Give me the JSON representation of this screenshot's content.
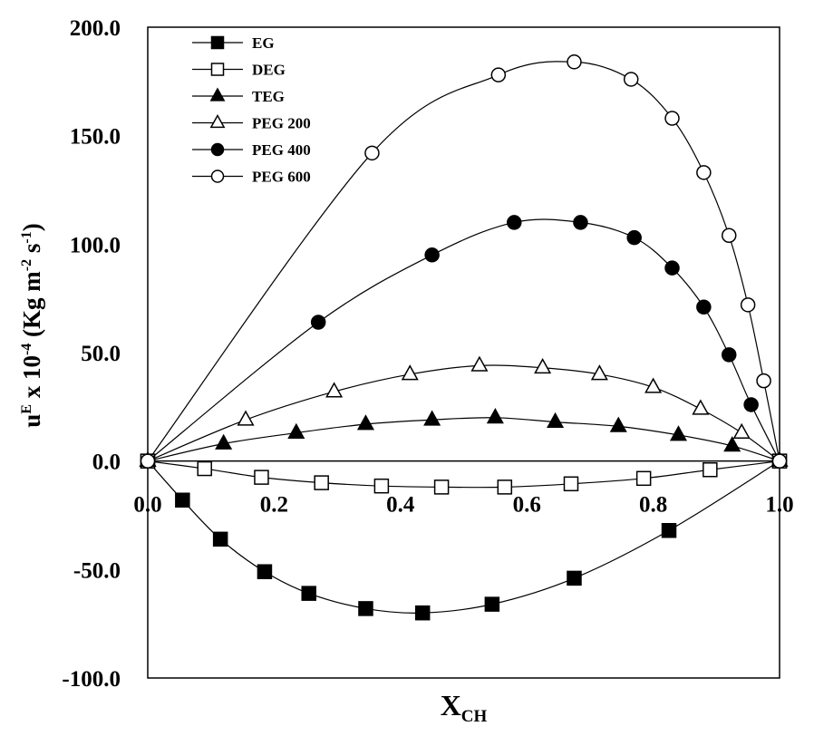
{
  "chart_data": {
    "type": "scatter",
    "xlabel": "X",
    "xlabel_sub": "CH",
    "ylabel": {
      "base": "u",
      "sup1": "E",
      "mid": " x 10",
      "sup2": "-4",
      "unit1": " (Kg m",
      "sup3": "-2",
      "unit2": " s",
      "sup4": "-1",
      "unit3": ")"
    },
    "xlim": [
      0.0,
      1.0
    ],
    "ylim": [
      -100.0,
      200.0
    ],
    "x_ticks": [
      "0.0",
      "0.2",
      "0.4",
      "0.6",
      "0.8",
      "1.0"
    ],
    "y_ticks": [
      "200.0",
      "150.0",
      "100.0",
      "50.0",
      "0.0",
      "-50.0",
      "-100.0"
    ],
    "grid": false,
    "legend_position": "top-left",
    "series": [
      {
        "name": "EG",
        "marker": "square",
        "filled": true,
        "x": [
          0.0,
          0.055,
          0.115,
          0.185,
          0.255,
          0.345,
          0.435,
          0.545,
          0.675,
          0.825,
          1.0
        ],
        "y": [
          0.0,
          -18.0,
          -36.0,
          -51.0,
          -61.0,
          -68.0,
          -70.0,
          -66.0,
          -54.0,
          -32.0,
          0.0
        ]
      },
      {
        "name": "DEG",
        "marker": "square",
        "filled": false,
        "x": [
          0.0,
          0.09,
          0.18,
          0.275,
          0.37,
          0.465,
          0.565,
          0.67,
          0.785,
          0.89,
          1.0
        ],
        "y": [
          0.0,
          -3.5,
          -7.5,
          -10.0,
          -11.5,
          -12.0,
          -12.0,
          -10.5,
          -8.0,
          -4.0,
          0.0
        ]
      },
      {
        "name": "TEG",
        "marker": "triangle",
        "filled": true,
        "x": [
          0.0,
          0.12,
          0.235,
          0.345,
          0.45,
          0.55,
          0.645,
          0.745,
          0.84,
          0.925,
          1.0
        ],
        "y": [
          0.0,
          8.0,
          13.0,
          17.0,
          19.0,
          20.0,
          18.0,
          16.0,
          12.0,
          7.0,
          0.0
        ]
      },
      {
        "name": "PEG 200",
        "marker": "triangle",
        "filled": false,
        "x": [
          0.0,
          0.155,
          0.295,
          0.415,
          0.525,
          0.625,
          0.715,
          0.8,
          0.875,
          0.94,
          1.0
        ],
        "y": [
          0.0,
          19.0,
          32.0,
          40.0,
          44.0,
          43.0,
          40.0,
          34.0,
          24.0,
          13.0,
          0.0
        ]
      },
      {
        "name": "PEG 400",
        "marker": "circle",
        "filled": true,
        "x": [
          0.0,
          0.27,
          0.45,
          0.58,
          0.685,
          0.77,
          0.83,
          0.88,
          0.92,
          0.955,
          1.0
        ],
        "y": [
          0.0,
          64.0,
          95.0,
          110.0,
          110.0,
          103.0,
          89.0,
          71.0,
          49.0,
          26.0,
          0.0
        ]
      },
      {
        "name": "PEG 600",
        "marker": "circle",
        "filled": false,
        "x": [
          0.0,
          0.355,
          0.555,
          0.675,
          0.765,
          0.83,
          0.88,
          0.92,
          0.95,
          0.975,
          1.0
        ],
        "y": [
          0.0,
          142.0,
          178.0,
          184.0,
          176.0,
          158.0,
          133.0,
          104.0,
          72.0,
          37.0,
          0.0
        ]
      }
    ]
  }
}
